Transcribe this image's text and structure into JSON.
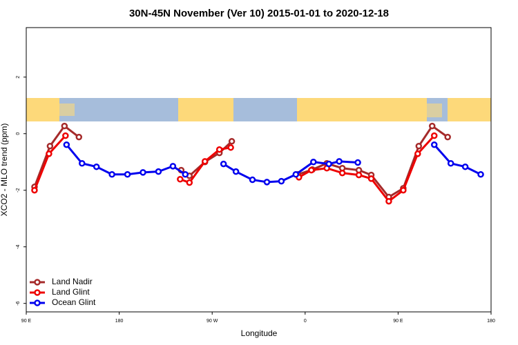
{
  "chart_data": {
    "type": "line",
    "title": "30N-45N November (Ver 10)   2015-01-01 to 2020-12-18",
    "x_label": "Longitude",
    "y_label": "XCO2 - MLO trend (ppm)",
    "xlim": [
      90,
      540
    ],
    "xticks": [
      {
        "value": 90,
        "label": "90 E"
      },
      {
        "value": 180,
        "label": "180"
      },
      {
        "value": 270,
        "label": "90 W"
      },
      {
        "value": 360,
        "label": "0"
      },
      {
        "value": 450,
        "label": "90 E"
      },
      {
        "value": 540,
        "label": "180"
      }
    ],
    "ylim": [
      -6.3,
      3.75
    ],
    "yticks": [
      -6,
      -4,
      -2,
      0,
      2
    ],
    "legend": "bottom-left",
    "series": [
      {
        "name": "Land Nadir",
        "color": "#a52a2a",
        "x": [
          98,
          113,
          127,
          141,
          null,
          240,
          248,
          263,
          277,
          289,
          null,
          353,
          367,
          381,
          396,
          412,
          424,
          441,
          455,
          470,
          483,
          498
        ],
        "values": [
          -1.88,
          -0.44,
          0.27,
          -0.12,
          null,
          -1.29,
          -1.49,
          -1.0,
          -0.68,
          -0.27,
          null,
          -1.44,
          -1.27,
          -1.05,
          -1.22,
          -1.29,
          -1.46,
          -2.24,
          -1.93,
          -0.44,
          0.27,
          -0.12
        ]
      },
      {
        "name": "Land Glint",
        "color": "#ee0000",
        "x": [
          98,
          112,
          128,
          null,
          239,
          248,
          263,
          277,
          288,
          null,
          354,
          366,
          381,
          396,
          412,
          424,
          441,
          455,
          469,
          485
        ],
        "values": [
          -2.0,
          -0.71,
          -0.07,
          null,
          -1.61,
          -1.73,
          -0.98,
          -0.56,
          -0.49,
          null,
          -1.54,
          -1.29,
          -1.22,
          -1.39,
          -1.46,
          -1.59,
          -2.39,
          -2.0,
          -0.71,
          -0.07
        ]
      },
      {
        "name": "Ocean Glint",
        "color": "#0000ee",
        "x": [
          129,
          144,
          158,
          173,
          188,
          203,
          218,
          232,
          244,
          null,
          281,
          293,
          309,
          323,
          337,
          351,
          368,
          383,
          393,
          411,
          null,
          485,
          501,
          515,
          530
        ],
        "values": [
          -0.39,
          -1.05,
          -1.17,
          -1.44,
          -1.44,
          -1.37,
          -1.34,
          -1.15,
          -1.44,
          null,
          -1.07,
          -1.34,
          -1.63,
          -1.71,
          -1.68,
          -1.44,
          -1.0,
          -1.07,
          -0.98,
          -1.02,
          null,
          -0.39,
          -1.05,
          -1.17,
          -1.44
        ]
      }
    ]
  }
}
